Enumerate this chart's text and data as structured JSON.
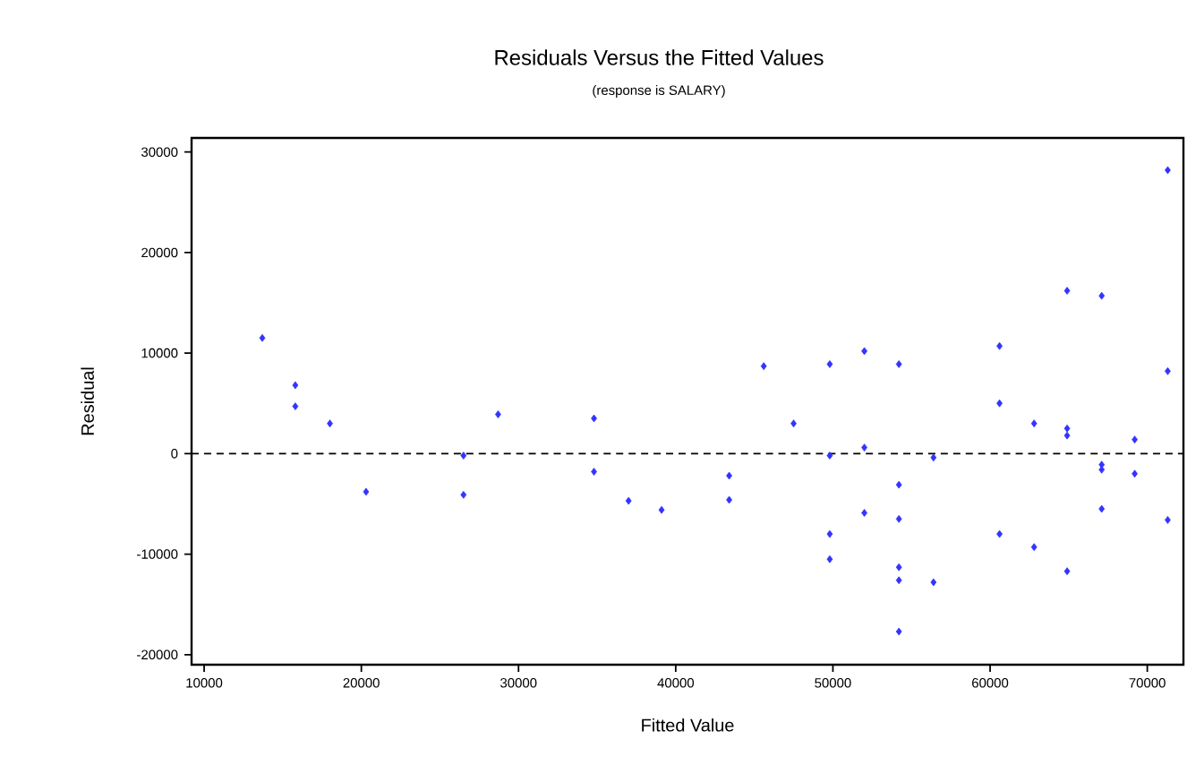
{
  "chart_data": {
    "type": "scatter",
    "title": "Residuals Versus the Fitted Values",
    "subtitle": "(response is SALARY)",
    "xlabel": "Fitted Value",
    "ylabel": "Residual",
    "xlim": [
      9200,
      72300
    ],
    "ylim": [
      -21000,
      31400
    ],
    "xticks": [
      10000,
      20000,
      30000,
      40000,
      50000,
      60000,
      70000
    ],
    "yticks": [
      -20000,
      -10000,
      0,
      10000,
      20000,
      30000
    ],
    "grid": false,
    "marker": "diamond",
    "ref_lines": [
      {
        "axis": "y",
        "value": 0,
        "color": "#000000",
        "line_style": "dashed"
      }
    ],
    "series": [
      {
        "color": "#3333ff",
        "x": [
          13700,
          15800,
          15800,
          18000,
          20300,
          26500,
          26500,
          28700,
          34800,
          34800,
          37000,
          39100,
          43400,
          43400,
          45600,
          47500,
          49800,
          49800,
          49800,
          49800,
          52000,
          52000,
          52000,
          54200,
          54200,
          54200,
          54200,
          54200,
          54200,
          56400,
          56400,
          60600,
          60600,
          60600,
          62800,
          62800,
          64900,
          64900,
          64900,
          64900,
          67100,
          67100,
          67100,
          67100,
          69200,
          69200,
          71300,
          71300,
          71300
        ],
        "values": [
          11500,
          6800,
          4700,
          3000,
          -3800,
          -200,
          -4100,
          3900,
          3500,
          -1800,
          -4700,
          -5600,
          -2200,
          -4600,
          8700,
          3000,
          8900,
          -200,
          -8000,
          -10500,
          10200,
          600,
          -5900,
          8900,
          -3100,
          -6500,
          -11300,
          -12600,
          -17700,
          -400,
          -12800,
          10700,
          5000,
          -8000,
          3000,
          -9300,
          16200,
          2500,
          1800,
          -11700,
          15700,
          -1100,
          -1600,
          -5500,
          1400,
          -2000,
          28200,
          8200,
          -6600
        ]
      }
    ]
  }
}
